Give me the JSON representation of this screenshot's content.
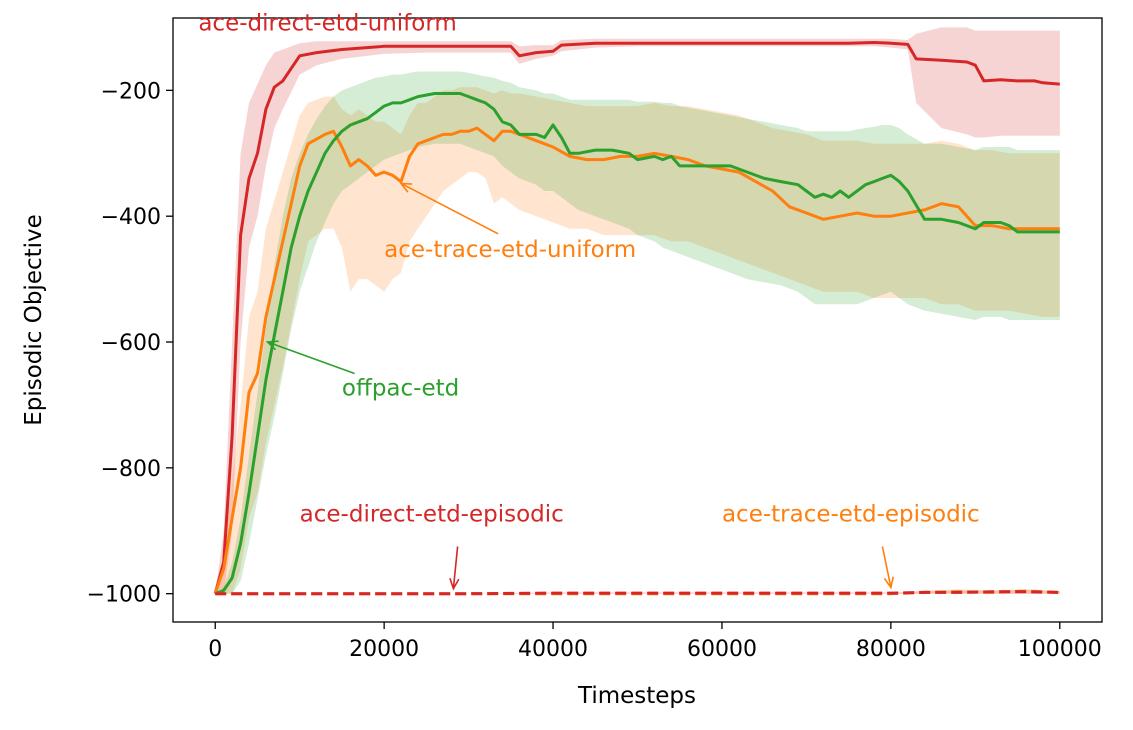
{
  "chart_data": {
    "type": "line",
    "title": "",
    "xlabel": "Timesteps",
    "ylabel": "Episodic Objective",
    "xlim": [
      -5000,
      105000
    ],
    "ylim": [
      -1045,
      -85
    ],
    "xticks": [
      0,
      20000,
      40000,
      60000,
      80000,
      100000
    ],
    "xtick_labels": [
      "0",
      "20000",
      "40000",
      "60000",
      "80000",
      "100000"
    ],
    "yticks": [
      -1000,
      -800,
      -600,
      -400,
      -200
    ],
    "ytick_labels": [
      "−1000",
      "−800",
      "−600",
      "−400",
      "−200"
    ],
    "grid": false,
    "legend": "none",
    "series": [
      {
        "name": "ace-direct-etd-uniform",
        "color": "#d62728",
        "dashed": false,
        "x": [
          0,
          1000,
          2000,
          3000,
          4000,
          5000,
          6000,
          7000,
          8000,
          10000,
          12000,
          15000,
          20000,
          25000,
          30000,
          35000,
          36000,
          38000,
          40000,
          41000,
          45000,
          50000,
          55000,
          60000,
          65000,
          70000,
          75000,
          78000,
          80000,
          82000,
          83000,
          86000,
          89000,
          90000,
          91000,
          93000,
          95000,
          97000,
          98000,
          100000
        ],
        "y": [
          -1000,
          -950,
          -750,
          -430,
          -340,
          -300,
          -230,
          -195,
          -185,
          -145,
          -140,
          -135,
          -130,
          -130,
          -130,
          -130,
          -145,
          -140,
          -138,
          -128,
          -125,
          -125,
          -125,
          -125,
          -125,
          -125,
          -125,
          -124,
          -125,
          -127,
          -150,
          -152,
          -155,
          -160,
          -185,
          -183,
          -185,
          -185,
          -188,
          -190
        ],
        "lower": [
          -1000,
          -1000,
          -900,
          -600,
          -450,
          -400,
          -320,
          -260,
          -230,
          -175,
          -160,
          -150,
          -142,
          -140,
          -140,
          -140,
          -158,
          -150,
          -145,
          -138,
          -132,
          -130,
          -130,
          -130,
          -130,
          -130,
          -130,
          -130,
          -132,
          -135,
          -220,
          -260,
          -270,
          -275,
          -275,
          -272,
          -272,
          -272,
          -272,
          -272
        ],
        "upper": [
          -1000,
          -900,
          -600,
          -300,
          -220,
          -190,
          -160,
          -140,
          -135,
          -125,
          -122,
          -122,
          -122,
          -122,
          -122,
          -122,
          -130,
          -128,
          -128,
          -120,
          -118,
          -118,
          -118,
          -118,
          -118,
          -118,
          -118,
          -118,
          -118,
          -120,
          -110,
          -100,
          -100,
          -105,
          -105,
          -105,
          -105,
          -105,
          -105,
          -105
        ]
      },
      {
        "name": "ace-trace-etd-uniform",
        "color": "#ff7f0e",
        "dashed": false,
        "x": [
          0,
          1000,
          2000,
          3000,
          4000,
          5000,
          6000,
          8000,
          10000,
          11000,
          13000,
          14000,
          15000,
          16000,
          17000,
          18000,
          19000,
          20000,
          21000,
          22000,
          23000,
          24000,
          25000,
          26000,
          27000,
          28000,
          29000,
          30000,
          31000,
          32000,
          33000,
          34000,
          35000,
          36000,
          38000,
          40000,
          42000,
          44000,
          46000,
          48000,
          50000,
          52000,
          54000,
          56000,
          58000,
          60000,
          62000,
          64000,
          66000,
          68000,
          70000,
          72000,
          74000,
          76000,
          78000,
          80000,
          82000,
          84000,
          86000,
          88000,
          90000,
          92000,
          94000,
          96000,
          98000,
          100000
        ],
        "y": [
          -1000,
          -960,
          -880,
          -800,
          -680,
          -650,
          -560,
          -440,
          -320,
          -285,
          -270,
          -265,
          -290,
          -320,
          -310,
          -320,
          -335,
          -330,
          -335,
          -345,
          -305,
          -285,
          -280,
          -275,
          -270,
          -270,
          -265,
          -265,
          -260,
          -270,
          -280,
          -265,
          -265,
          -270,
          -280,
          -290,
          -305,
          -310,
          -310,
          -305,
          -305,
          -300,
          -305,
          -310,
          -320,
          -325,
          -330,
          -345,
          -360,
          -385,
          -395,
          -405,
          -400,
          -395,
          -400,
          -400,
          -395,
          -390,
          -380,
          -385,
          -415,
          -415,
          -420,
          -420,
          -420,
          -420
        ],
        "lower": [
          -1000,
          -1000,
          -1000,
          -960,
          -880,
          -840,
          -760,
          -640,
          -500,
          -440,
          -420,
          -420,
          -450,
          -520,
          -500,
          -500,
          -510,
          -520,
          -500,
          -490,
          -440,
          -420,
          -400,
          -380,
          -360,
          -350,
          -340,
          -330,
          -330,
          -340,
          -380,
          -370,
          -380,
          -390,
          -400,
          -410,
          -420,
          -420,
          -430,
          -430,
          -430,
          -430,
          -440,
          -440,
          -450,
          -460,
          -470,
          -480,
          -490,
          -500,
          -510,
          -520,
          -520,
          -520,
          -530,
          -530,
          -530,
          -530,
          -540,
          -540,
          -550,
          -550,
          -550,
          -555,
          -560,
          -560
        ],
        "upper": [
          -1000,
          -940,
          -820,
          -700,
          -560,
          -520,
          -420,
          -330,
          -240,
          -220,
          -210,
          -210,
          -230,
          -240,
          -230,
          -240,
          -250,
          -250,
          -260,
          -270,
          -240,
          -220,
          -220,
          -210,
          -200,
          -200,
          -195,
          -195,
          -195,
          -200,
          -205,
          -200,
          -205,
          -205,
          -210,
          -215,
          -220,
          -225,
          -225,
          -225,
          -225,
          -220,
          -225,
          -225,
          -230,
          -235,
          -240,
          -250,
          -260,
          -265,
          -270,
          -280,
          -280,
          -280,
          -285,
          -285,
          -285,
          -285,
          -280,
          -285,
          -295,
          -295,
          -300,
          -300,
          -300,
          -300
        ]
      },
      {
        "name": "offpac-etd",
        "color": "#2ca02c",
        "dashed": false,
        "x": [
          0,
          1000,
          2000,
          3000,
          4000,
          5000,
          6000,
          7000,
          8000,
          9000,
          10000,
          11000,
          12000,
          13000,
          14000,
          15000,
          16000,
          17000,
          18000,
          19000,
          20000,
          21000,
          22000,
          23000,
          24000,
          26000,
          28000,
          29000,
          30000,
          31000,
          32000,
          33000,
          34000,
          35000,
          36000,
          38000,
          39000,
          40000,
          41000,
          42000,
          43000,
          45000,
          47000,
          49000,
          50000,
          52000,
          53000,
          54000,
          55000,
          57000,
          59000,
          61000,
          63000,
          65000,
          67000,
          69000,
          70000,
          71000,
          72000,
          73000,
          74000,
          75000,
          76000,
          77000,
          78000,
          79000,
          80000,
          81000,
          82000,
          84000,
          86000,
          88000,
          90000,
          91000,
          93000,
          94000,
          95000,
          97000,
          98000,
          100000
        ],
        "y": [
          -1000,
          -995,
          -975,
          -920,
          -840,
          -750,
          -660,
          -590,
          -520,
          -450,
          -400,
          -360,
          -330,
          -300,
          -280,
          -265,
          -255,
          -250,
          -245,
          -235,
          -225,
          -220,
          -220,
          -215,
          -210,
          -205,
          -205,
          -205,
          -210,
          -215,
          -220,
          -230,
          -250,
          -255,
          -270,
          -270,
          -275,
          -255,
          -275,
          -300,
          -300,
          -295,
          -295,
          -300,
          -310,
          -305,
          -310,
          -305,
          -320,
          -320,
          -320,
          -320,
          -330,
          -340,
          -345,
          -350,
          -360,
          -370,
          -365,
          -370,
          -360,
          -370,
          -360,
          -350,
          -345,
          -340,
          -335,
          -345,
          -360,
          -405,
          -405,
          -410,
          -420,
          -410,
          -410,
          -415,
          -425,
          -425,
          -425,
          -425
        ],
        "lower": [
          -1000,
          -1000,
          -1000,
          -980,
          -920,
          -850,
          -780,
          -720,
          -650,
          -580,
          -520,
          -480,
          -440,
          -410,
          -380,
          -360,
          -350,
          -340,
          -330,
          -320,
          -310,
          -305,
          -300,
          -295,
          -290,
          -285,
          -285,
          -285,
          -290,
          -295,
          -300,
          -305,
          -320,
          -330,
          -340,
          -350,
          -360,
          -360,
          -370,
          -380,
          -390,
          -400,
          -410,
          -420,
          -430,
          -440,
          -450,
          -455,
          -460,
          -470,
          -480,
          -490,
          -500,
          -505,
          -510,
          -520,
          -530,
          -540,
          -540,
          -540,
          -540,
          -540,
          -540,
          -535,
          -530,
          -525,
          -520,
          -530,
          -540,
          -550,
          -555,
          -560,
          -565,
          -560,
          -560,
          -565,
          -565,
          -565,
          -565,
          -565
        ],
        "upper": [
          -1000,
          -990,
          -950,
          -880,
          -780,
          -680,
          -580,
          -480,
          -400,
          -340,
          -300,
          -270,
          -245,
          -225,
          -210,
          -200,
          -195,
          -190,
          -185,
          -180,
          -178,
          -175,
          -175,
          -172,
          -170,
          -170,
          -170,
          -170,
          -172,
          -175,
          -178,
          -180,
          -185,
          -188,
          -195,
          -200,
          -205,
          -205,
          -210,
          -215,
          -215,
          -215,
          -215,
          -215,
          -218,
          -218,
          -220,
          -220,
          -225,
          -230,
          -235,
          -240,
          -245,
          -250,
          -255,
          -260,
          -265,
          -265,
          -265,
          -265,
          -265,
          -265,
          -262,
          -260,
          -258,
          -255,
          -255,
          -260,
          -270,
          -285,
          -285,
          -290,
          -295,
          -290,
          -290,
          -290,
          -295,
          -295,
          -295,
          -295
        ]
      },
      {
        "name": "ace-trace-etd-episodic",
        "color": "#ff7f0e",
        "dashed": true,
        "x": [
          0,
          10000,
          20000,
          30000,
          40000,
          50000,
          60000,
          70000,
          80000,
          84000,
          88000,
          92000,
          96000,
          100000
        ],
        "y": [
          -1000,
          -1000,
          -1000,
          -1000,
          -1000,
          -1000,
          -1000,
          -1000,
          -1000,
          -998,
          -997,
          -998,
          -996,
          -998
        ],
        "lower": [
          -1000,
          -1000,
          -1000,
          -1000,
          -1000,
          -1000,
          -1000,
          -1000,
          -1000,
          -1000,
          -1000,
          -1000,
          -1000,
          -1000
        ],
        "upper": [
          -1000,
          -1000,
          -1000,
          -1000,
          -1000,
          -1000,
          -1000,
          -1000,
          -1000,
          -995,
          -993,
          -995,
          -992,
          -996
        ]
      },
      {
        "name": "ace-direct-etd-episodic",
        "color": "#d62728",
        "dashed": true,
        "x": [
          0,
          10000,
          20000,
          30000,
          40000,
          50000,
          60000,
          70000,
          80000,
          84000,
          88000,
          92000,
          96000,
          100000
        ],
        "y": [
          -1000,
          -1000,
          -1000,
          -1000,
          -999,
          -999,
          -999,
          -999,
          -999,
          -998,
          -998,
          -997,
          -997,
          -998
        ],
        "lower": [
          -1000,
          -1000,
          -1000,
          -1000,
          -1000,
          -1000,
          -1000,
          -1000,
          -1000,
          -1000,
          -1000,
          -1000,
          -1000,
          -1000
        ],
        "upper": [
          -1000,
          -1000,
          -1000,
          -1000,
          -998,
          -998,
          -998,
          -998,
          -998,
          -996,
          -995,
          -995,
          -994,
          -996
        ]
      }
    ],
    "annotations": [
      {
        "text": "ace-direct-etd-uniform",
        "color": "#d62728",
        "text_x": -2000,
        "text_y": -105,
        "anchor": "start",
        "arrow": false
      },
      {
        "text": "ace-trace-etd-uniform",
        "color": "#ff7f0e",
        "text_x": 20000,
        "text_y": -465,
        "anchor": "start",
        "arrow": true,
        "from_x": 33500,
        "from_y": -428,
        "to_x": 22000,
        "to_y": -348
      },
      {
        "text": "offpac-etd",
        "color": "#2ca02c",
        "text_x": 15000,
        "text_y": -685,
        "anchor": "start",
        "arrow": true,
        "from_x": 16500,
        "from_y": -650,
        "to_x": 6200,
        "to_y": -600
      },
      {
        "text": "ace-direct-etd-episodic",
        "color": "#d62728",
        "text_x": 10000,
        "text_y": -885,
        "anchor": "start",
        "arrow": true,
        "from_x": 28700,
        "from_y": -925,
        "to_x": 28200,
        "to_y": -992
      },
      {
        "text": "ace-trace-etd-episodic",
        "color": "#ff7f0e",
        "text_x": 60000,
        "text_y": -885,
        "anchor": "start",
        "arrow": true,
        "from_x": 79000,
        "from_y": -925,
        "to_x": 80000,
        "to_y": -990
      }
    ]
  }
}
